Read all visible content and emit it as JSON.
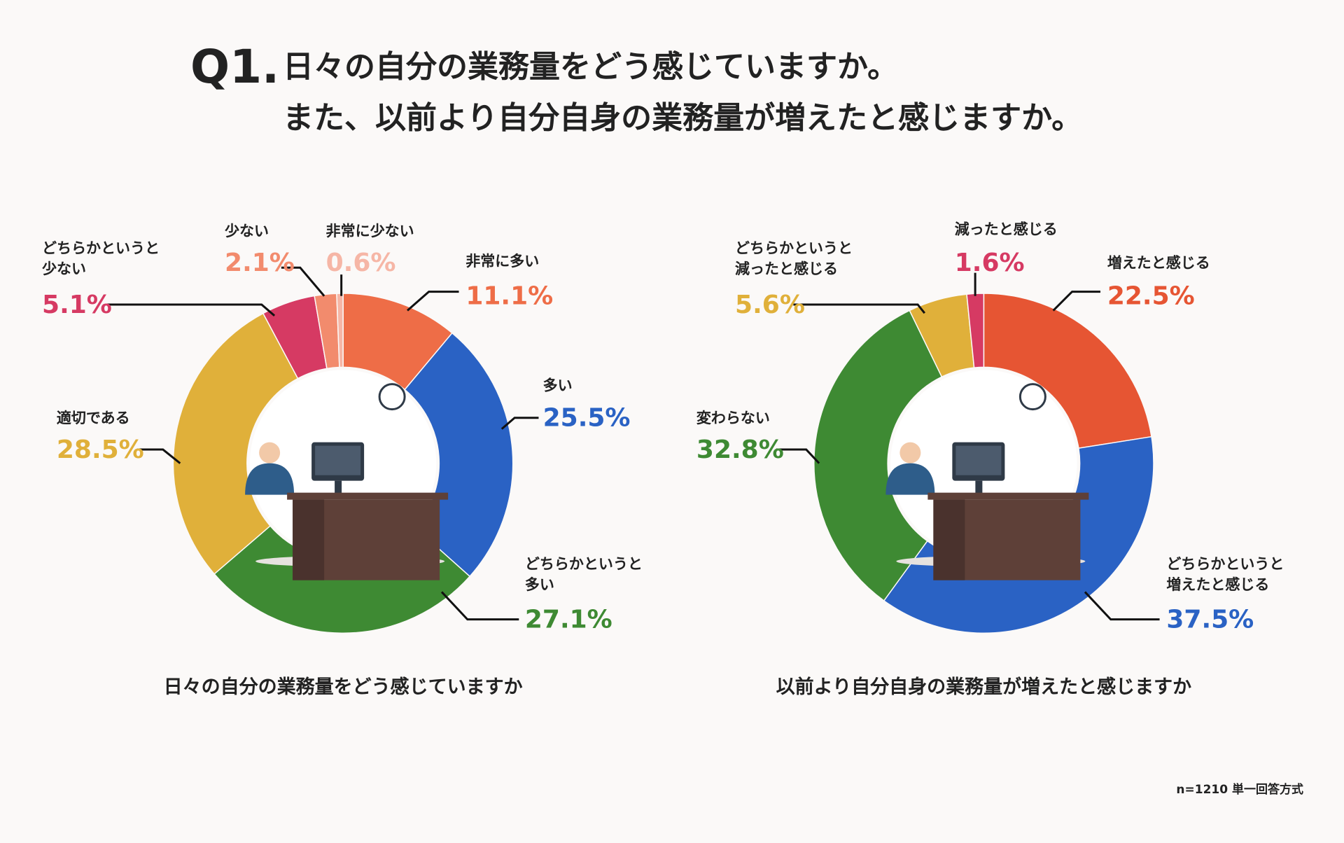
{
  "header": {
    "label": "Q1.",
    "lines": [
      "日々の自分の業務量をどう感じていますか。",
      "また、以前より自分自身の業務量が増えたと感じますか。"
    ]
  },
  "chart_data": [
    {
      "type": "pie",
      "title": "日々の自分の業務量をどう感じていますか",
      "categories": [
        "非常に多い",
        "多い",
        "どちらかというと\n多い",
        "適切である",
        "どちらかというと\n少ない",
        "少ない",
        "非常に少ない"
      ],
      "values": [
        11.1,
        25.5,
        27.1,
        28.5,
        5.1,
        2.1,
        0.6
      ],
      "value_labels": [
        "11.1%",
        "25.5%",
        "27.1%",
        "28.5%",
        "5.1%",
        "2.1%",
        "0.6%"
      ],
      "colors": [
        "#ee6d47",
        "#2a62c4",
        "#3e8a33",
        "#e0b03a",
        "#d63a63",
        "#f28b6d",
        "#f6b6a6"
      ]
    },
    {
      "type": "pie",
      "title": "以前より自分自身の業務量が増えたと感じますか",
      "categories": [
        "増えたと感じる",
        "どちらかというと\n増えたと感じる",
        "変わらない",
        "どちらかというと\n減ったと感じる",
        "減ったと感じる"
      ],
      "values": [
        22.5,
        37.5,
        32.8,
        5.6,
        1.6
      ],
      "value_labels": [
        "22.5%",
        "37.5%",
        "32.8%",
        "5.6%",
        "1.6%"
      ],
      "colors": [
        "#e65533",
        "#2a62c4",
        "#3e8a33",
        "#e0b03a",
        "#d63a63"
      ]
    }
  ],
  "footnote": "n=1210  単一回答方式"
}
